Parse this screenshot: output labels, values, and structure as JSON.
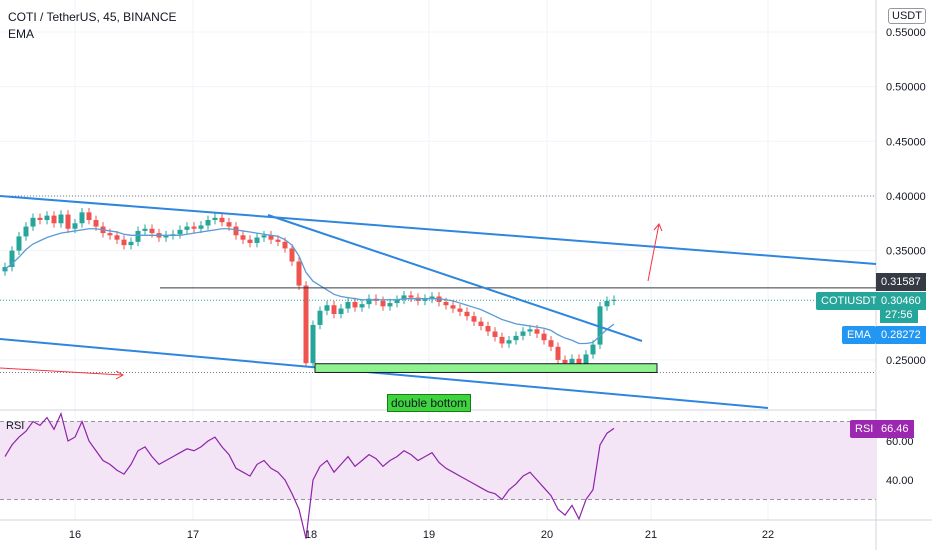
{
  "header": {
    "symbol_line": "COTI / TetherUS, 45, BINANCE",
    "indicator_line": "EMA"
  },
  "currency_button": "USDT",
  "rsi_label": "RSI",
  "annotation": "double bottom",
  "price_axis": {
    "ticks": [
      "0.55000",
      "0.50000",
      "0.45000",
      "0.40000",
      "0.35000",
      "0.25000"
    ],
    "levels": [
      0.55,
      0.5,
      0.45,
      0.4,
      0.35,
      0.25
    ]
  },
  "rsi_axis": {
    "ticks": [
      "60.00",
      "40.00"
    ],
    "levels": [
      60,
      40
    ]
  },
  "labels": {
    "resistance": "0.31587",
    "symbol": "COTIUSDT",
    "last_price": "0.30460",
    "countdown": "27:56",
    "ema_name": "EMA",
    "ema_value": "0.28272",
    "rsi_name": "RSI",
    "rsi_value": "66.46"
  },
  "colors": {
    "candle_up": "#26a69a",
    "candle_down": "#ef5350",
    "ema": "#5b9bd5",
    "trendline": "#2e86de",
    "rsi": "#8e24aa",
    "rsi_band": "#f3e5f5",
    "support_box": "#8ef38e",
    "arrow": "#f23645",
    "symbol_label": "#26a69a",
    "ema_label": "#2196f3",
    "rsi_label": "#9c27b0"
  },
  "chart_data": {
    "type": "candlestick",
    "x_ticks": [
      "16",
      "17",
      "18",
      "19",
      "20",
      "21",
      "22"
    ],
    "ylim": [
      0.205,
      0.565
    ],
    "drawn_levels": {
      "horizontal_resistance": 0.31587,
      "dotted_top": 0.4,
      "dotted_bottom": 0.2385,
      "support_zone": [
        0.2385,
        0.2465
      ]
    },
    "candles_close": [
      0.335,
      0.35,
      0.363,
      0.372,
      0.38,
      0.378,
      0.382,
      0.375,
      0.383,
      0.37,
      0.375,
      0.385,
      0.378,
      0.372,
      0.366,
      0.364,
      0.36,
      0.355,
      0.358,
      0.368,
      0.37,
      0.366,
      0.362,
      0.364,
      0.365,
      0.369,
      0.372,
      0.37,
      0.373,
      0.378,
      0.38,
      0.376,
      0.372,
      0.364,
      0.36,
      0.357,
      0.362,
      0.364,
      0.36,
      0.358,
      0.352,
      0.34,
      0.318,
      0.247,
      0.282,
      0.295,
      0.3,
      0.292,
      0.297,
      0.303,
      0.298,
      0.301,
      0.306,
      0.304,
      0.299,
      0.302,
      0.305,
      0.309,
      0.307,
      0.304,
      0.306,
      0.308,
      0.303,
      0.3,
      0.297,
      0.294,
      0.29,
      0.285,
      0.281,
      0.276,
      0.271,
      0.265,
      0.268,
      0.272,
      0.276,
      0.278,
      0.274,
      0.268,
      0.262,
      0.25,
      0.247,
      0.251,
      0.246,
      0.255,
      0.264,
      0.299,
      0.304,
      0.305
    ],
    "ema_close": [
      0.333,
      0.338,
      0.344,
      0.351,
      0.356,
      0.359,
      0.362,
      0.364,
      0.366,
      0.367,
      0.368,
      0.369,
      0.37,
      0.37,
      0.369,
      0.368,
      0.367,
      0.365,
      0.364,
      0.364,
      0.364,
      0.364,
      0.364,
      0.364,
      0.364,
      0.364,
      0.365,
      0.366,
      0.367,
      0.368,
      0.369,
      0.37,
      0.37,
      0.369,
      0.368,
      0.367,
      0.366,
      0.365,
      0.364,
      0.363,
      0.36,
      0.355,
      0.345,
      0.33,
      0.322,
      0.318,
      0.314,
      0.31,
      0.308,
      0.307,
      0.306,
      0.305,
      0.305,
      0.305,
      0.305,
      0.305,
      0.305,
      0.306,
      0.306,
      0.306,
      0.306,
      0.306,
      0.306,
      0.305,
      0.304,
      0.302,
      0.3,
      0.298,
      0.296,
      0.293,
      0.29,
      0.287,
      0.285,
      0.283,
      0.282,
      0.281,
      0.28,
      0.279,
      0.277,
      0.273,
      0.27,
      0.268,
      0.265,
      0.265,
      0.266,
      0.272,
      0.278,
      0.2827
    ],
    "rsi": [
      52,
      58,
      62,
      65,
      70,
      68,
      72,
      66,
      74,
      60,
      62,
      70,
      60,
      55,
      50,
      48,
      45,
      43,
      48,
      55,
      57,
      52,
      48,
      50,
      52,
      54,
      56,
      55,
      57,
      60,
      62,
      57,
      53,
      46,
      44,
      42,
      48,
      50,
      46,
      44,
      40,
      33,
      25,
      10,
      40,
      47,
      50,
      44,
      48,
      52,
      47,
      50,
      53,
      51,
      47,
      50,
      52,
      55,
      53,
      50,
      52,
      54,
      49,
      46,
      44,
      42,
      40,
      38,
      36,
      34,
      33,
      30,
      35,
      38,
      42,
      44,
      40,
      36,
      32,
      25,
      22,
      27,
      20,
      30,
      35,
      58,
      64,
      66.46
    ]
  }
}
